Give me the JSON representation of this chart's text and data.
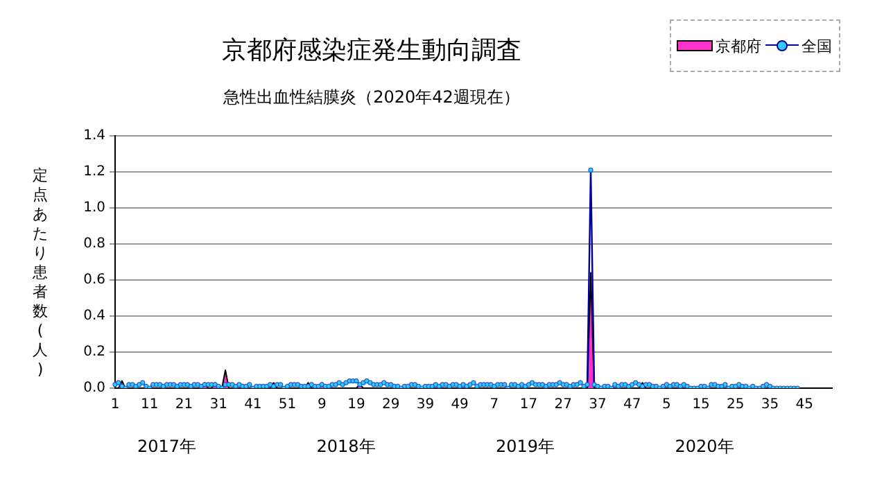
{
  "chart_data": {
    "type": "line",
    "title": "京都府感染症発生動向調査",
    "subtitle": "急性出血性結膜炎（2020年42週現在）",
    "ylabel": "定点あたり患者数(人)",
    "annotations": [
      "2017年",
      "2018年",
      "2019年",
      "2020年"
    ],
    "categories": [
      "1",
      null,
      null,
      null,
      null,
      null,
      null,
      null,
      null,
      null,
      "11",
      null,
      null,
      null,
      null,
      null,
      null,
      null,
      null,
      null,
      "21",
      null,
      null,
      null,
      null,
      null,
      null,
      null,
      null,
      null,
      "31",
      null,
      null,
      null,
      null,
      null,
      null,
      null,
      null,
      null,
      "41",
      null,
      null,
      null,
      null,
      null,
      null,
      null,
      null,
      null,
      "51",
      null,
      null,
      null,
      null,
      null,
      null,
      null,
      null,
      null,
      "9",
      null,
      null,
      null,
      null,
      null,
      null,
      null,
      null,
      null,
      "19",
      null,
      null,
      null,
      null,
      null,
      null,
      null,
      null,
      null,
      "29",
      null,
      null,
      null,
      null,
      null,
      null,
      null,
      null,
      null,
      "39",
      null,
      null,
      null,
      null,
      null,
      null,
      null,
      null,
      null,
      "49",
      null,
      null,
      null,
      null,
      null,
      null,
      null,
      null,
      null,
      "7",
      null,
      null,
      null,
      null,
      null,
      null,
      null,
      null,
      null,
      "17",
      null,
      null,
      null,
      null,
      null,
      null,
      null,
      null,
      null,
      "27",
      null,
      null,
      null,
      null,
      null,
      null,
      null,
      null,
      null,
      "37",
      null,
      null,
      null,
      null,
      null,
      null,
      null,
      null,
      null,
      "47",
      null,
      null,
      null,
      null,
      null,
      null,
      null,
      null,
      null,
      "5",
      null,
      null,
      null,
      null,
      null,
      null,
      null,
      null,
      null,
      "15",
      null,
      null,
      null,
      null,
      null,
      null,
      null,
      null,
      null,
      "25",
      null,
      null,
      null,
      null,
      null,
      null,
      null,
      null,
      null,
      "35",
      null,
      null,
      null,
      null,
      null,
      null,
      null,
      null,
      null,
      "45",
      null,
      null,
      null,
      null,
      null,
      null,
      null,
      null
    ],
    "series": [
      {
        "name": "京都府",
        "type": "area",
        "marker": "none",
        "color": "#ff33cc",
        "values": [
          0,
          0,
          0.04,
          0,
          0,
          0,
          0,
          0,
          0,
          0,
          0,
          0,
          0,
          0,
          0,
          0,
          0,
          0,
          0,
          0,
          0,
          0,
          0,
          0,
          0,
          0,
          0.03,
          0,
          0,
          0.03,
          0,
          0,
          0.1,
          0,
          0,
          0,
          0,
          0,
          0,
          0,
          0,
          0,
          0,
          0,
          0,
          0,
          0.03,
          0,
          0,
          0,
          0,
          0,
          0,
          0,
          0,
          0,
          0.03,
          0,
          0,
          0,
          0.03,
          0,
          0,
          0,
          0,
          0,
          0,
          0,
          0,
          0,
          0,
          0.02,
          0,
          0,
          0,
          0,
          0,
          0,
          0,
          0,
          0,
          0,
          0,
          0,
          0,
          0,
          0,
          0,
          0,
          0,
          0,
          0,
          0,
          0,
          0,
          0,
          0,
          0,
          0,
          0,
          0,
          0,
          0,
          0,
          0,
          0,
          0,
          0,
          0,
          0,
          0,
          0,
          0,
          0,
          0,
          0,
          0,
          0,
          0,
          0,
          0,
          0,
          0,
          0,
          0,
          0,
          0,
          0,
          0,
          0,
          0,
          0,
          0,
          0,
          0,
          0,
          0,
          0,
          0.64,
          0,
          0,
          0,
          0,
          0,
          0,
          0,
          0,
          0,
          0,
          0,
          0,
          0,
          0,
          0.03,
          0,
          0,
          0,
          0,
          0,
          0,
          0,
          0,
          0,
          0,
          0,
          0,
          0,
          0,
          0,
          0,
          0,
          0,
          0,
          0,
          0,
          0,
          0,
          0,
          0,
          0,
          0,
          0,
          0,
          0,
          0,
          0,
          0,
          0,
          0,
          0,
          0,
          0,
          0,
          0,
          0,
          0,
          0,
          0,
          0,
          null,
          null,
          null,
          null,
          null,
          null,
          null,
          null,
          null,
          null
        ]
      },
      {
        "name": "全国",
        "type": "line",
        "marker": "circle",
        "color": "#33ccff",
        "values": [
          0.02,
          0.03,
          0.01,
          0.0,
          0.02,
          0.02,
          0.01,
          0.02,
          0.03,
          0.01,
          0.0,
          0.02,
          0.02,
          0.02,
          0.01,
          0.02,
          0.02,
          0.02,
          0.01,
          0.02,
          0.02,
          0.02,
          0.01,
          0.02,
          0.02,
          0.01,
          0.02,
          0.02,
          0.02,
          0.02,
          0.01,
          0.0,
          0.02,
          0.02,
          0.02,
          0.01,
          0.02,
          0.01,
          0.01,
          0.02,
          0.0,
          0.01,
          0.01,
          0.01,
          0.01,
          0.02,
          0.01,
          0.02,
          0.02,
          0.0,
          0.01,
          0.02,
          0.02,
          0.02,
          0.01,
          0.01,
          0.01,
          0.02,
          0.01,
          0.01,
          0.02,
          0.01,
          0.01,
          0.02,
          0.02,
          0.03,
          0.02,
          0.03,
          0.04,
          0.04,
          0.04,
          0.02,
          0.03,
          0.04,
          0.03,
          0.02,
          0.02,
          0.02,
          0.03,
          0.02,
          0.02,
          0.01,
          0.01,
          0.0,
          0.01,
          0.01,
          0.02,
          0.02,
          0.01,
          0.0,
          0.01,
          0.01,
          0.01,
          0.02,
          0.01,
          0.02,
          0.02,
          0.01,
          0.02,
          0.02,
          0.01,
          0.02,
          0.01,
          0.02,
          0.03,
          0.01,
          0.02,
          0.02,
          0.02,
          0.02,
          0.01,
          0.02,
          0.02,
          0.02,
          0.0,
          0.02,
          0.02,
          0.01,
          0.02,
          0.01,
          0.02,
          0.03,
          0.02,
          0.02,
          0.02,
          0.01,
          0.02,
          0.02,
          0.02,
          0.03,
          0.02,
          0.02,
          0.01,
          0.02,
          0.02,
          0.03,
          0.01,
          0.02,
          1.21,
          0.02,
          0.01,
          0.0,
          0.01,
          0.01,
          0.0,
          0.02,
          0.01,
          0.02,
          0.02,
          0.01,
          0.02,
          0.03,
          0.02,
          0.01,
          0.02,
          0.02,
          0.01,
          0.01,
          0.0,
          0.01,
          0.02,
          0.01,
          0.02,
          0.02,
          0.01,
          0.02,
          0.01,
          0.0,
          0.0,
          0.0,
          0.01,
          0.01,
          0.0,
          0.02,
          0.02,
          0.01,
          0.01,
          0.02,
          0.0,
          0.01,
          0.01,
          0.02,
          0.01,
          0.01,
          0.0,
          0.01,
          0.0,
          0.0,
          0.01,
          0.02,
          0.01,
          0.0,
          0.0,
          0.0,
          0.0,
          0.0,
          0.0,
          0.0,
          0.0,
          null,
          null,
          null,
          null,
          null,
          null,
          null,
          null,
          null,
          null
        ]
      }
    ],
    "ylim": [
      0,
      1.4
    ],
    "yticks": [
      {
        "value": 0,
        "label": "0.0"
      },
      {
        "value": 0.2,
        "label": "0.2"
      },
      {
        "value": 0.4,
        "label": "0.4"
      },
      {
        "value": 0.6,
        "label": "0.6"
      },
      {
        "value": 0.8,
        "label": "0.8"
      },
      {
        "value": 1,
        "label": "1.0"
      },
      {
        "value": 1.2,
        "label": "1.2"
      },
      {
        "value": 1.4,
        "label": "1.4"
      }
    ],
    "grid": "y",
    "legend": "top right",
    "line_style": "solid"
  }
}
